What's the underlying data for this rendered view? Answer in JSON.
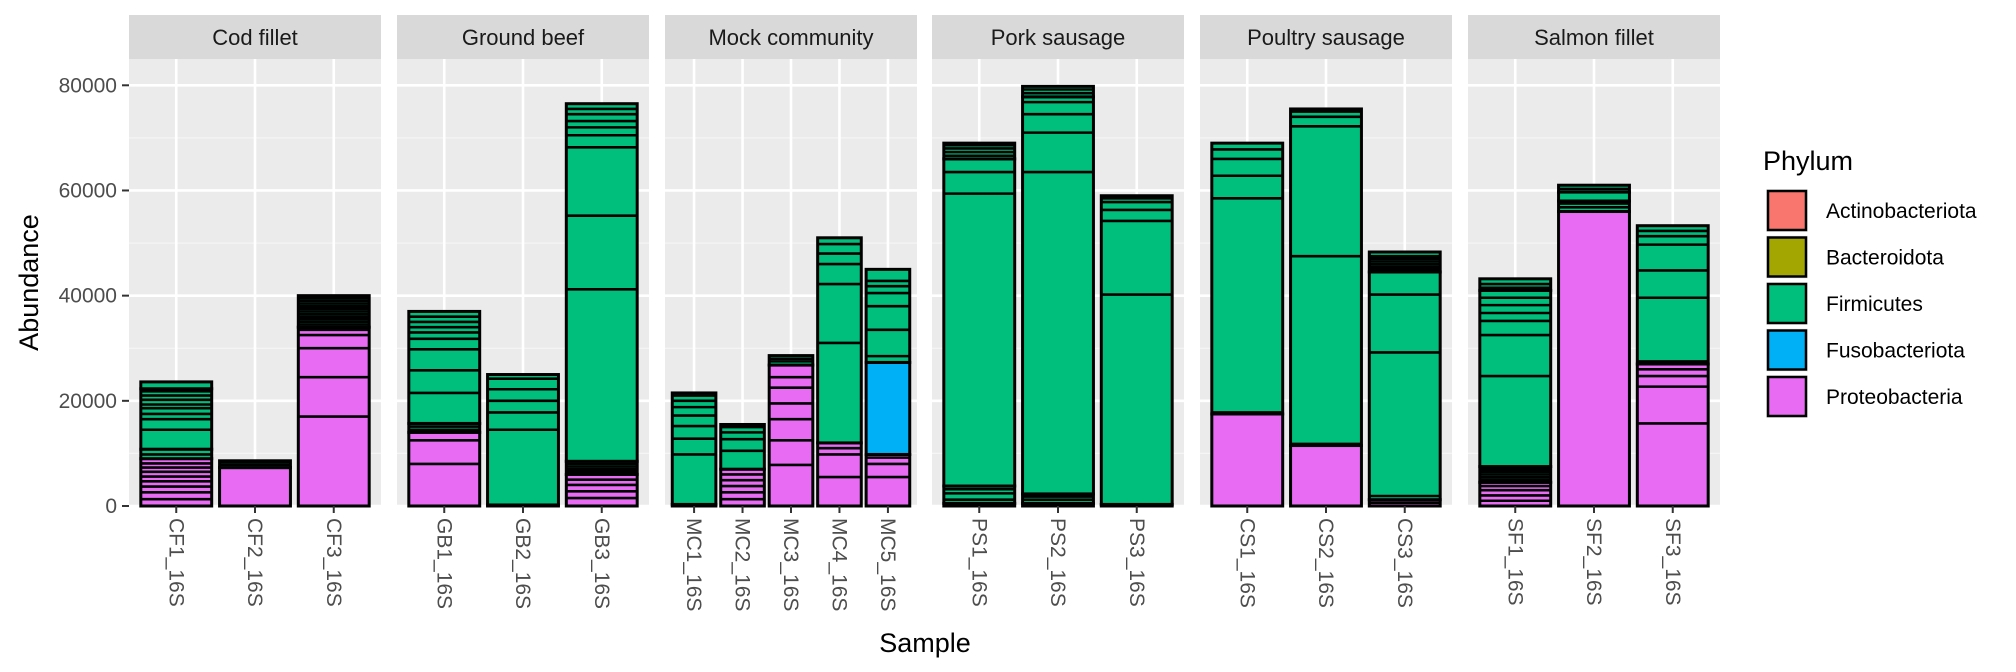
{
  "chart_data": {
    "type": "bar",
    "stacked": true,
    "facet_by": "sample_group",
    "xlabel": "Sample",
    "ylabel": "Abundance",
    "ylim": [
      0,
      85000
    ],
    "y_ticks": [
      0,
      20000,
      40000,
      60000,
      80000
    ],
    "y_tick_labels": [
      "0",
      "20000",
      "40000",
      "60000",
      "80000"
    ],
    "legend": {
      "title": "Phylum",
      "position": "right",
      "entries": [
        {
          "name": "Actinobacteriota",
          "color": "#F8766D"
        },
        {
          "name": "Bacteroidota",
          "color": "#A3A500"
        },
        {
          "name": "Firmicutes",
          "color": "#00BF7D"
        },
        {
          "name": "Fusobacteriota",
          "color": "#00B0F6"
        },
        {
          "name": "Proteobacteria",
          "color": "#E76BF3"
        }
      ]
    },
    "facets": [
      {
        "name": "Cod fillet",
        "samples": [
          {
            "name": "CF1_16S",
            "segments": [
              {
                "phylum": "Proteobacteria",
                "value": 9000,
                "bounds": [
                  1300,
                  2600,
                  3700,
                  4700,
                  5600,
                  6500,
                  7300,
                  8100
                ]
              },
              {
                "phylum": "Firmicutes",
                "value": 1800,
                "bounds": [
                  9800
                ]
              },
              {
                "phylum": "Firmicutes",
                "value": 11500,
                "bounds": [
                  14500,
                  16500,
                  17500,
                  18600,
                  19300,
                  20200,
                  21000,
                  21800
                ]
              },
              {
                "phylum": "Firmicutes",
                "value": 1300,
                "bounds": []
              }
            ]
          },
          {
            "name": "CF2_16S",
            "segments": [
              {
                "phylum": "Proteobacteria",
                "value": 7300,
                "bounds": []
              },
              {
                "phylum": "Firmicutes",
                "value": 1300,
                "bounds": [
                  7800,
                  8300
                ]
              }
            ]
          },
          {
            "name": "CF3_16S",
            "segments": [
              {
                "phylum": "Proteobacteria",
                "value": 34000,
                "bounds": [
                  17000,
                  24500,
                  30000,
                  32500,
                  33500
                ]
              },
              {
                "phylum": "Firmicutes",
                "value": 6000,
                "bounds": [
                  34500,
                  35000,
                  35500,
                  36000,
                  36500,
                  37000,
                  37500,
                  38000,
                  38500,
                  39000,
                  39500
                ]
              }
            ]
          }
        ]
      },
      {
        "name": "Ground beef",
        "samples": [
          {
            "name": "GB1_16S",
            "segments": [
              {
                "phylum": "Proteobacteria",
                "value": 14000,
                "bounds": [
                  8000,
                  12500
                ]
              },
              {
                "phylum": "Firmicutes",
                "value": 1700,
                "bounds": [
                  14500,
                  15100
                ]
              },
              {
                "phylum": "Firmicutes",
                "value": 21300,
                "bounds": [
                  21500,
                  25800,
                  29800,
                  31800,
                  33000,
                  34000,
                  35000,
                  36000
                ]
              }
            ]
          },
          {
            "name": "GB2_16S",
            "segments": [
              {
                "phylum": "Proteobacteria",
                "value": 200,
                "bounds": []
              },
              {
                "phylum": "Firmicutes",
                "value": 24800,
                "bounds": [
                  14500,
                  17800,
                  20000,
                  22200,
                  24200
                ]
              }
            ]
          },
          {
            "name": "GB3_16S",
            "segments": [
              {
                "phylum": "Proteobacteria",
                "value": 6000,
                "bounds": [
                  1500,
                  2800,
                  4000,
                  5000
                ]
              },
              {
                "phylum": "Firmicutes",
                "value": 2500,
                "bounds": [
                  6500,
                  7000,
                  7500,
                  8000
                ]
              },
              {
                "phylum": "Firmicutes",
                "value": 68000,
                "bounds": [
                  41200,
                  55200,
                  68200,
                  70500,
                  72000,
                  73200,
                  74500,
                  75500
                ]
              }
            ]
          }
        ]
      },
      {
        "name": "Mock community",
        "samples": [
          {
            "name": "MC1_16S",
            "segments": [
              {
                "phylum": "Proteobacteria",
                "value": 300,
                "bounds": []
              },
              {
                "phylum": "Firmicutes",
                "value": 21200,
                "bounds": [
                  9800,
                  12800,
                  15200,
                  17200,
                  18800,
                  20000,
                  21000
                ]
              }
            ]
          },
          {
            "name": "MC2_16S",
            "segments": [
              {
                "phylum": "Proteobacteria",
                "value": 7000,
                "bounds": [
                  1300,
                  2600,
                  3800,
                  4900,
                  6000
                ]
              },
              {
                "phylum": "Firmicutes",
                "value": 8500,
                "bounds": [
                  10500,
                  12700,
                  14000,
                  15000
                ]
              }
            ]
          },
          {
            "name": "MC3_16S",
            "segments": [
              {
                "phylum": "Proteobacteria",
                "value": 26800,
                "bounds": [
                  7800,
                  12500,
                  16500,
                  19500,
                  22500,
                  24500
                ]
              },
              {
                "phylum": "Firmicutes",
                "value": 1800,
                "bounds": [
                  27500,
                  28000
                ]
              }
            ]
          },
          {
            "name": "MC4_16S",
            "segments": [
              {
                "phylum": "Proteobacteria",
                "value": 12000,
                "bounds": [
                  5500,
                  9800,
                  11000
                ]
              },
              {
                "phylum": "Firmicutes",
                "value": 39000,
                "bounds": [
                  31000,
                  42200,
                  46000,
                  48000,
                  49800
                ]
              }
            ]
          },
          {
            "name": "MC5_16S",
            "segments": [
              {
                "phylum": "Proteobacteria",
                "value": 9800,
                "bounds": [
                  5500,
                  8000,
                  9200
                ]
              },
              {
                "phylum": "Fusobacteriota",
                "value": 17500,
                "bounds": []
              },
              {
                "phylum": "Firmicutes",
                "value": 17700,
                "bounds": [
                  28500,
                  33500,
                  38000,
                  40500,
                  41800,
                  42800
                ]
              }
            ]
          }
        ]
      },
      {
        "name": "Pork sausage",
        "samples": [
          {
            "name": "PS1_16S",
            "segments": [
              {
                "phylum": "Proteobacteria",
                "value": 500,
                "bounds": []
              },
              {
                "phylum": "Firmicutes",
                "value": 3300,
                "bounds": [
                  1200,
                  2400,
                  3200
                ]
              },
              {
                "phylum": "Firmicutes",
                "value": 62200,
                "bounds": [
                  59400,
                  63500,
                  66000
                ]
              },
              {
                "phylum": "Firmicutes",
                "value": 3000,
                "bounds": [
                  66600,
                  67300,
                  68000,
                  68600
                ]
              }
            ]
          },
          {
            "name": "PS2_16S",
            "segments": [
              {
                "phylum": "Proteobacteria",
                "value": 500,
                "bounds": []
              },
              {
                "phylum": "Firmicutes",
                "value": 1800,
                "bounds": [
                  1200,
                  1800
                ]
              },
              {
                "phylum": "Firmicutes",
                "value": 75500,
                "bounds": [
                  63500,
                  71000,
                  74500,
                  76800
                ]
              },
              {
                "phylum": "Firmicutes",
                "value": 2000,
                "bounds": [
                  78500,
                  79200
                ]
              }
            ]
          },
          {
            "name": "PS3_16S",
            "segments": [
              {
                "phylum": "Proteobacteria",
                "value": 300,
                "bounds": []
              },
              {
                "phylum": "Firmicutes",
                "value": 58700,
                "bounds": [
                  40200,
                  54200,
                  56300,
                  57800,
                  58500
                ]
              }
            ]
          }
        ]
      },
      {
        "name": "Poultry sausage",
        "samples": [
          {
            "name": "CS1_16S",
            "segments": [
              {
                "phylum": "Proteobacteria",
                "value": 17500,
                "bounds": []
              },
              {
                "phylum": "Firmicutes",
                "value": 51500,
                "bounds": [
                  17800,
                  58500,
                  62800,
                  66000,
                  67800
                ]
              }
            ]
          },
          {
            "name": "CS2_16S",
            "segments": [
              {
                "phylum": "Proteobacteria",
                "value": 11500,
                "bounds": []
              },
              {
                "phylum": "Firmicutes",
                "value": 64000,
                "bounds": [
                  11800,
                  47500,
                  72200,
                  74000,
                  75000
                ]
              }
            ]
          },
          {
            "name": "CS3_16S",
            "segments": [
              {
                "phylum": "Proteobacteria",
                "value": 1200,
                "bounds": [
                  600
                ]
              },
              {
                "phylum": "Firmicutes",
                "value": 43300,
                "bounds": [
                  1900,
                  29200,
                  40200
                ]
              },
              {
                "phylum": "Firmicutes",
                "value": 3800,
                "bounds": [
                  45000,
                  45500,
                  46000,
                  46500,
                  47000,
                  47500
                ]
              }
            ]
          }
        ]
      },
      {
        "name": "Salmon fillet",
        "samples": [
          {
            "name": "SF1_16S",
            "segments": [
              {
                "phylum": "Proteobacteria",
                "value": 4500,
                "bounds": [
                  1000,
                  2000,
                  3000,
                  3800
                ]
              },
              {
                "phylum": "Firmicutes",
                "value": 3000,
                "bounds": [
                  5000,
                  5500,
                  6000,
                  6500,
                  7000
                ]
              },
              {
                "phylum": "Firmicutes",
                "value": 33500,
                "bounds": [
                  24700,
                  32500,
                  35200,
                  36700,
                  38200,
                  39600
                ]
              },
              {
                "phylum": "Firmicutes",
                "value": 2200,
                "bounds": [
                  41500,
                  42200
                ]
              }
            ]
          },
          {
            "name": "SF2_16S",
            "segments": [
              {
                "phylum": "Proteobacteria",
                "value": 56000,
                "bounds": []
              },
              {
                "phylum": "Firmicutes",
                "value": 2000,
                "bounds": [
                  56800,
                  57500
                ]
              },
              {
                "phylum": "Firmicutes",
                "value": 1700,
                "bounds": []
              },
              {
                "phylum": "Firmicutes",
                "value": 1300,
                "bounds": [
                  60300
                ]
              }
            ]
          },
          {
            "name": "SF3_16S",
            "segments": [
              {
                "phylum": "Proteobacteria",
                "value": 27000,
                "bounds": [
                  15700,
                  22700,
                  24700,
                  26000
                ]
              },
              {
                "phylum": "Firmicutes",
                "value": 26300,
                "bounds": [
                  27500,
                  39600,
                  44800,
                  49700,
                  51300,
                  52300
                ]
              }
            ]
          }
        ]
      }
    ]
  }
}
